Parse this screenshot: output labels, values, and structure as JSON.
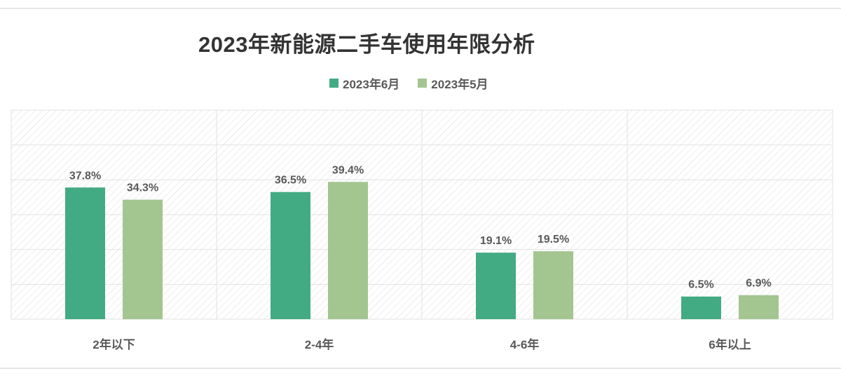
{
  "chart_data": {
    "type": "bar",
    "title": "2023年新能源二手车使用年限分析",
    "categories": [
      "2年以下",
      "2-4年",
      "4-6年",
      "6年以上"
    ],
    "series": [
      {
        "name": "2023年6月",
        "values": [
          37.8,
          36.5,
          19.1,
          6.5
        ],
        "labels": [
          "37.8%",
          "36.5%",
          "19.1%",
          "6.5%"
        ],
        "color": "#43ab84"
      },
      {
        "name": "2023年5月",
        "values": [
          34.3,
          39.4,
          19.5,
          6.9
        ],
        "labels": [
          "34.3%",
          "39.4%",
          "19.5%",
          "6.9%"
        ],
        "color": "#a3c590"
      }
    ],
    "ylim": [
      0,
      60
    ],
    "grid": true,
    "legend_position": "top",
    "xlabel": "",
    "ylabel": "",
    "colors": {
      "grid": "#e2e2e2",
      "hatch": "#dcdcdc",
      "text": "#595959",
      "title": "#333333"
    }
  }
}
